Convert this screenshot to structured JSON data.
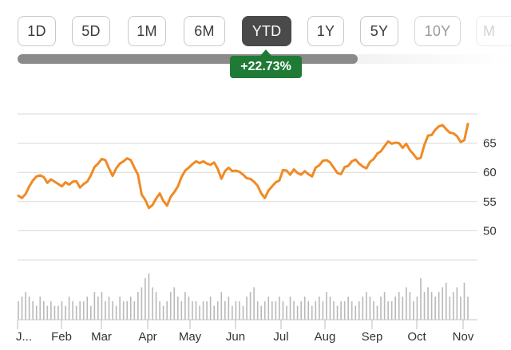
{
  "range_buttons": [
    {
      "label": "1D",
      "state": "normal"
    },
    {
      "label": "5D",
      "state": "normal"
    },
    {
      "label": "1M",
      "state": "normal"
    },
    {
      "label": "6M",
      "state": "normal"
    },
    {
      "label": "YTD",
      "state": "active"
    },
    {
      "label": "1Y",
      "state": "normal"
    },
    {
      "label": "5Y",
      "state": "normal"
    },
    {
      "label": "10Y",
      "state": "dim"
    },
    {
      "label": "M",
      "state": "faded"
    }
  ],
  "scrollbar": {
    "position_fraction": 0.0,
    "visible_fraction": 0.69
  },
  "change_badge": {
    "text": "+22.73%",
    "color": "#1f7a35"
  },
  "colors": {
    "line": "#f08a24",
    "grid": "#d9d9d9",
    "volume": "#b9b9b9",
    "active_button": "#4a4a4a"
  },
  "chart_data": {
    "type": "line",
    "title": "",
    "xlabel": "",
    "ylabel": "",
    "ylim": [
      45,
      70
    ],
    "y_ticks": [
      50,
      55,
      60,
      65
    ],
    "x_ticks": [
      "J...",
      "Feb",
      "Mar",
      "Apr",
      "May",
      "Jun",
      "Jul",
      "Aug",
      "Sep",
      "Oct",
      "Nov"
    ],
    "grid": true,
    "y_axis_position": "right",
    "series": [
      {
        "values": [
          56.0,
          55.6,
          56.3,
          57.6,
          58.6,
          59.3,
          59.5,
          59.2,
          58.2,
          58.8,
          58.4,
          58.0,
          57.6,
          58.3,
          57.9,
          58.4,
          58.5,
          57.4,
          58.0,
          58.4,
          59.5,
          60.9,
          61.5,
          62.3,
          62.1,
          60.7,
          59.4,
          60.7,
          61.5,
          61.9,
          62.4,
          62.1,
          60.8,
          59.6,
          56.2,
          55.3,
          53.9,
          54.4,
          55.5,
          56.4,
          55.1,
          54.3,
          55.8,
          56.6,
          57.6,
          59.2,
          60.3,
          60.8,
          61.4,
          61.9,
          61.6,
          61.9,
          61.5,
          61.3,
          61.7,
          60.6,
          58.9,
          60.2,
          60.8,
          60.2,
          60.3,
          60.1,
          59.6,
          59.0,
          58.9,
          58.4,
          57.7,
          56.4,
          55.6,
          56.9,
          57.6,
          58.3,
          58.6,
          60.4,
          60.3,
          59.6,
          60.5,
          59.9,
          59.6,
          60.2,
          59.7,
          59.3,
          60.8,
          61.2,
          62.0,
          62.1,
          61.7,
          60.8,
          59.9,
          59.7,
          60.9,
          61.1,
          61.9,
          62.2,
          61.5,
          61.0,
          60.7,
          61.8,
          62.3,
          63.2,
          63.6,
          64.5,
          65.3,
          64.9,
          65.1,
          65.0,
          64.2,
          64.9,
          63.8,
          63.1,
          62.3,
          62.5,
          64.7,
          66.3,
          66.4,
          67.3,
          67.9,
          68.1,
          67.4,
          66.8,
          66.7,
          66.2,
          65.2,
          65.5,
          68.3
        ]
      }
    ],
    "volume": [
      4,
      5,
      6,
      5,
      4,
      3,
      5,
      4,
      3,
      4,
      3,
      3,
      4,
      3,
      5,
      4,
      3,
      4,
      4,
      5,
      3,
      6,
      5,
      6,
      4,
      5,
      4,
      3,
      5,
      4,
      4,
      5,
      4,
      6,
      7,
      9,
      10,
      7,
      6,
      4,
      3,
      4,
      6,
      7,
      5,
      4,
      6,
      5,
      4,
      4,
      3,
      4,
      4,
      5,
      3,
      4,
      6,
      4,
      5,
      3,
      4,
      4,
      3,
      5,
      6,
      7,
      4,
      3,
      4,
      5,
      4,
      4,
      5,
      4,
      3,
      5,
      4,
      3,
      4,
      5,
      4,
      3,
      4,
      5,
      4,
      6,
      5,
      4,
      3,
      4,
      4,
      5,
      4,
      3,
      4,
      5,
      6,
      5,
      4,
      3,
      5,
      6,
      4,
      4,
      5,
      6,
      5,
      7,
      6,
      4,
      5,
      9,
      6,
      7,
      6,
      5,
      6,
      7,
      8,
      5,
      6,
      7,
      5,
      8,
      5
    ]
  }
}
